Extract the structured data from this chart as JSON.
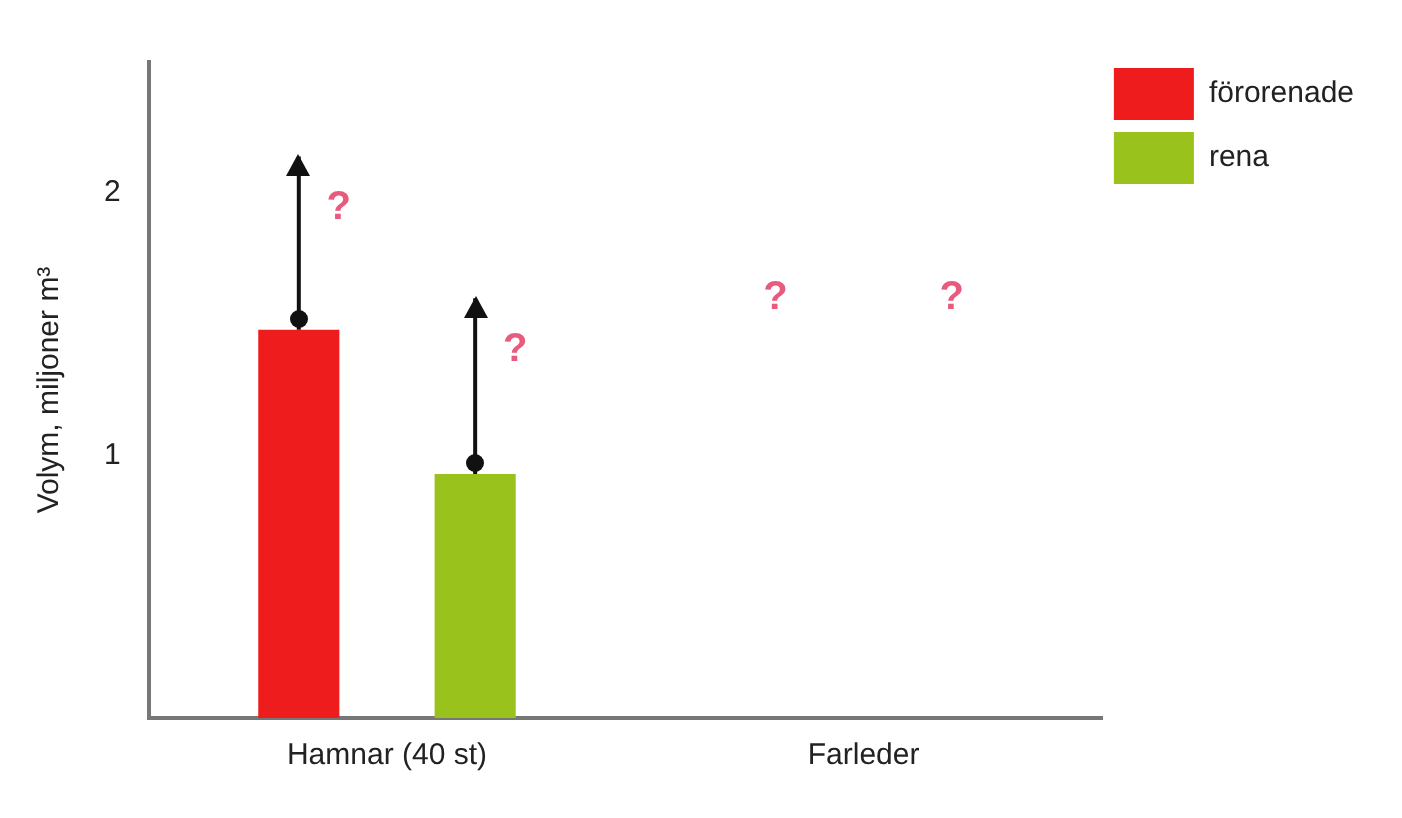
{
  "chart_data": {
    "type": "bar",
    "ylabel": "Volym, miljoner m³",
    "categories": [
      "Hamnar (40 st)",
      "Farleder"
    ],
    "series": [
      {
        "name": "förorenade",
        "color": "#ee1c1c",
        "values": [
          1.48,
          null
        ],
        "errors": [
          [
            1.48,
            2.14
          ],
          null
        ]
      },
      {
        "name": "rena",
        "color": "#99c21c",
        "values": [
          0.93,
          null
        ],
        "errors": [
          [
            0.93,
            1.6
          ],
          null
        ]
      }
    ],
    "ylim": [
      0,
      2.5
    ],
    "yticks": [
      1,
      2
    ],
    "grid": false,
    "legend": "top right",
    "annotations": [
      "?",
      "?",
      "?",
      "?"
    ]
  }
}
